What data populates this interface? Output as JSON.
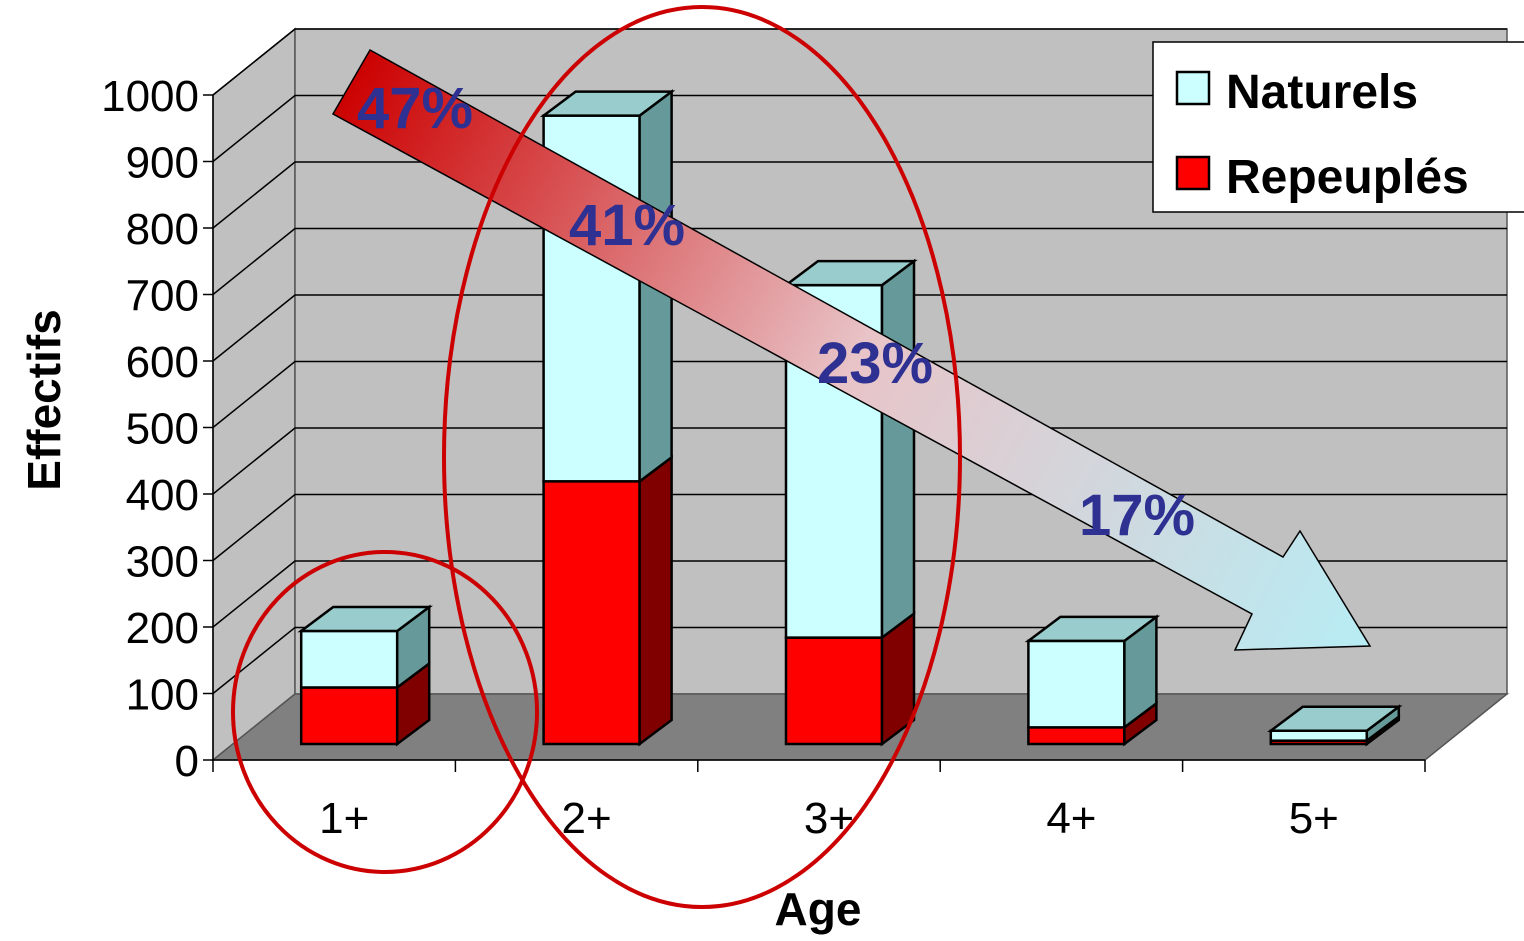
{
  "chart_data": {
    "type": "bar",
    "stacked": true,
    "three_d": true,
    "categories": [
      "1+",
      "2+",
      "3+",
      "4+",
      "5+"
    ],
    "series": [
      {
        "name": "Repeuplés",
        "values": [
          85,
          395,
          160,
          25,
          5
        ],
        "color": "#ff0000"
      },
      {
        "name": "Naturels",
        "values": [
          85,
          550,
          530,
          130,
          15
        ],
        "color": "#ccffff"
      }
    ],
    "xlabel": "Age",
    "ylabel": "Effectifs",
    "ylim": [
      0,
      1000
    ],
    "yticks": [
      "0",
      "100",
      "200",
      "300",
      "400",
      "500",
      "600",
      "700",
      "800",
      "900",
      "1000"
    ],
    "grid": true,
    "legend_position": "top-right",
    "legend_order": [
      "Naturels",
      "Repeuplés"
    ],
    "annotations": {
      "trend_arrow": "decreasing",
      "percent_labels": [
        "47%",
        "41%",
        "23%",
        "17%"
      ],
      "ellipses_around_categories": [
        "1+",
        "2+ and 3+"
      ]
    },
    "colors": {
      "wall": "#c0c0c0",
      "floor": "#808080",
      "annotation_text": "#2e3192",
      "ellipse": "#cc0000"
    }
  }
}
